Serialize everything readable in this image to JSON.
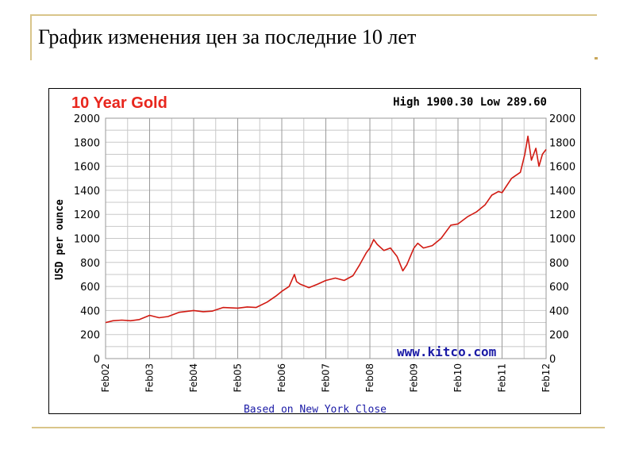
{
  "slide": {
    "title": "График изменения цен за последние 10 лет"
  },
  "chart_data": {
    "type": "line",
    "title": "10 Year Gold",
    "stats": "High 1900.30 Low 289.60",
    "ylabel": "USD per ounce",
    "watermark": "www.kitco.com",
    "footer": "Based on New York Close",
    "ylim": [
      0,
      2000
    ],
    "y_ticks": [
      0,
      200,
      400,
      600,
      800,
      1000,
      1200,
      1400,
      1600,
      1800,
      2000
    ],
    "x_range": [
      2002.083,
      2012.083
    ],
    "x_ticks": [
      "Feb02",
      "Feb03",
      "Feb04",
      "Feb05",
      "Feb06",
      "Feb07",
      "Feb08",
      "Feb09",
      "Feb10",
      "Feb11",
      "Feb12"
    ],
    "grid": true,
    "colors": {
      "title": "#e8261d",
      "line": "#d11a12",
      "watermark": "#1a1aa6",
      "footer": "#1a1aa6",
      "grid": "#c8c8c8"
    },
    "series": [
      {
        "x": [
          2002.083,
          2002.25,
          2002.45,
          2002.65,
          2002.85,
          2003.083,
          2003.3,
          2003.5,
          2003.75,
          2004.083,
          2004.3,
          2004.5,
          2004.75,
          2005.083,
          2005.3,
          2005.5,
          2005.75,
          2005.95,
          2006.083,
          2006.25,
          2006.37,
          2006.42,
          2006.5,
          2006.7,
          2006.9,
          2007.083,
          2007.3,
          2007.5,
          2007.7,
          2007.85,
          2008.0,
          2008.083,
          2008.17,
          2008.25,
          2008.4,
          2008.55,
          2008.7,
          2008.83,
          2008.92,
          2009.083,
          2009.17,
          2009.3,
          2009.5,
          2009.7,
          2009.92,
          2010.083,
          2010.3,
          2010.5,
          2010.7,
          2010.85,
          2011.0,
          2011.083,
          2011.3,
          2011.5,
          2011.6,
          2011.67,
          2011.75,
          2011.85,
          2011.92,
          2012.0,
          2012.083
        ],
        "y": [
          300,
          315,
          320,
          315,
          325,
          360,
          340,
          350,
          385,
          400,
          390,
          395,
          425,
          420,
          430,
          425,
          470,
          520,
          560,
          600,
          700,
          640,
          620,
          590,
          620,
          650,
          670,
          650,
          690,
          780,
          880,
          920,
          990,
          950,
          900,
          920,
          850,
          730,
          780,
          920,
          960,
          920,
          940,
          1000,
          1110,
          1120,
          1180,
          1220,
          1280,
          1360,
          1390,
          1380,
          1500,
          1550,
          1700,
          1850,
          1650,
          1750,
          1600,
          1700,
          1740
        ]
      }
    ]
  }
}
